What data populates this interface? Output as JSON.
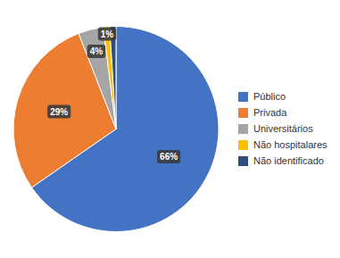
{
  "chart_data": {
    "type": "pie",
    "categories": [
      "Público",
      "Privada",
      "Universitários",
      "Não hospitalares",
      "Não identificado"
    ],
    "values": [
      66,
      29,
      4,
      1,
      1
    ],
    "value_labels": [
      "66%",
      "29%",
      "4%",
      "1%",
      null
    ],
    "colors": [
      "#4472C4",
      "#ED7D31",
      "#A5A5A5",
      "#FFC000",
      "#2F4F7F"
    ],
    "data_labels": true,
    "legend": "right"
  }
}
